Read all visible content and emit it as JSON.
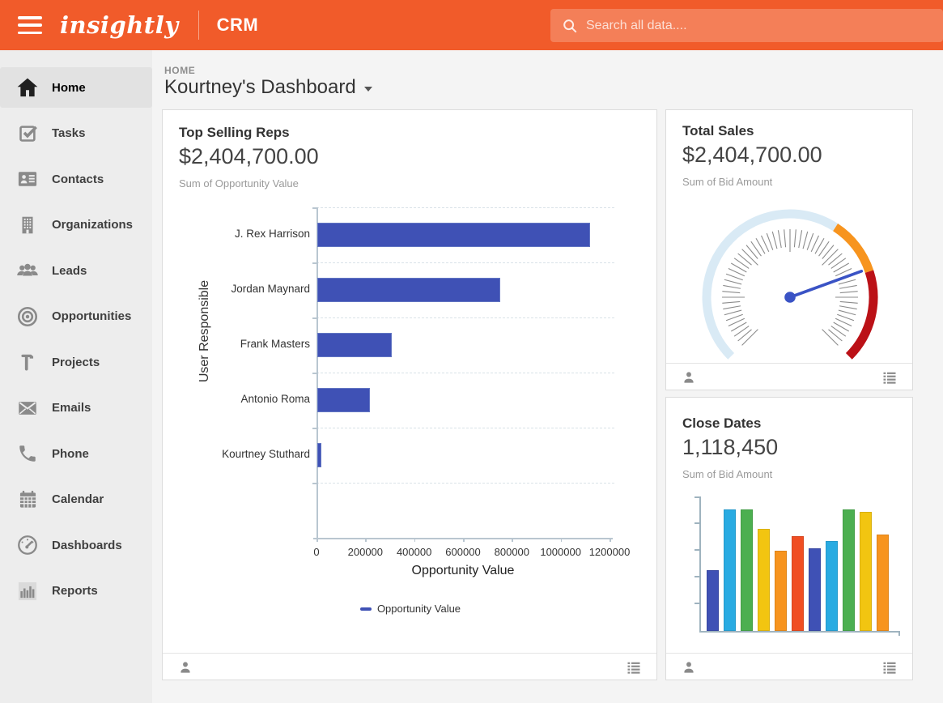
{
  "header": {
    "logo": "insightly",
    "product": "CRM",
    "search_placeholder": "Search all data....",
    "menu_icon": "hamburger-icon",
    "search_icon": "search-icon",
    "bg_color": "#f15b2a"
  },
  "breadcrumb": "HOME",
  "page_title": "Kourtney's Dashboard",
  "title_caret_icon": "chevron-down-icon",
  "sidebar": {
    "items": [
      {
        "label": "Home",
        "icon": "home-icon",
        "active": true
      },
      {
        "label": "Tasks",
        "icon": "tasks-icon",
        "active": false
      },
      {
        "label": "Contacts",
        "icon": "contacts-icon",
        "active": false
      },
      {
        "label": "Organizations",
        "icon": "organizations-icon",
        "active": false
      },
      {
        "label": "Leads",
        "icon": "leads-icon",
        "active": false
      },
      {
        "label": "Opportunities",
        "icon": "opportunities-icon",
        "active": false
      },
      {
        "label": "Projects",
        "icon": "projects-icon",
        "active": false
      },
      {
        "label": "Emails",
        "icon": "emails-icon",
        "active": false
      },
      {
        "label": "Phone",
        "icon": "phone-icon",
        "active": false
      },
      {
        "label": "Calendar",
        "icon": "calendar-icon",
        "active": false
      },
      {
        "label": "Dashboards",
        "icon": "dashboards-icon",
        "active": false
      },
      {
        "label": "Reports",
        "icon": "reports-icon",
        "active": false
      }
    ]
  },
  "cards": {
    "top_selling_reps": {
      "title": "Top Selling Reps",
      "amount": "$2,404,700.00",
      "subtitle": "Sum of Opportunity Value"
    },
    "total_sales": {
      "title": "Total Sales",
      "amount": "$2,404,700.00",
      "subtitle": "Sum of Bid Amount"
    },
    "close_dates": {
      "title": "Close Dates",
      "amount": "1,118,450",
      "subtitle": "Sum of Bid Amount"
    }
  },
  "card_footer_icons": [
    "person-icon",
    "list-icon"
  ],
  "chart_data": [
    {
      "id": "top_selling_reps",
      "type": "bar",
      "orientation": "horizontal",
      "title": "Top Selling Reps",
      "categories": [
        "J. Rex Harrison",
        "Jordan Maynard",
        "Frank Masters",
        "Antonio Roma",
        "Kourtney Stuthard"
      ],
      "values": [
        1118450,
        750000,
        305000,
        215000,
        16250
      ],
      "xlabel": "Opportunity Value",
      "ylabel": "User Responsible",
      "xlim": [
        0,
        1200000
      ],
      "x_ticks": [
        0,
        200000,
        400000,
        600000,
        800000,
        1000000,
        1200000
      ],
      "grid": "dashed-horizontal",
      "bar_color": "#3f51b5",
      "legend": [
        {
          "label": "Opportunity Value",
          "color": "#3f51b5"
        }
      ],
      "legend_position": "bottom-center"
    },
    {
      "id": "total_sales",
      "type": "gauge",
      "title": "Total Sales",
      "value_label": "$2,404,700.00",
      "start_angle": 225,
      "end_angle": -45,
      "needle_angle": 20,
      "needle_color": "#3a53c5",
      "segments": [
        {
          "color": "#d9eaf5",
          "from": 225,
          "to": 57
        },
        {
          "color": "#f7941e",
          "from": 57,
          "to": 18
        },
        {
          "color": "#bb1117",
          "from": 18,
          "to": -45
        }
      ]
    },
    {
      "id": "close_dates",
      "type": "bar",
      "orientation": "vertical",
      "title": "Close Dates",
      "values_pct_of_max": [
        50,
        100,
        100,
        84,
        66,
        78,
        68,
        74,
        100,
        98,
        79
      ],
      "colors": [
        "#3f51b5",
        "#29abe2",
        "#4caf50",
        "#f2c511",
        "#f7941e",
        "#f04e23",
        "#3f51b5",
        "#29abe2",
        "#4caf50",
        "#f2c511",
        "#f7941e"
      ],
      "axis_labels_shown": false
    }
  ]
}
